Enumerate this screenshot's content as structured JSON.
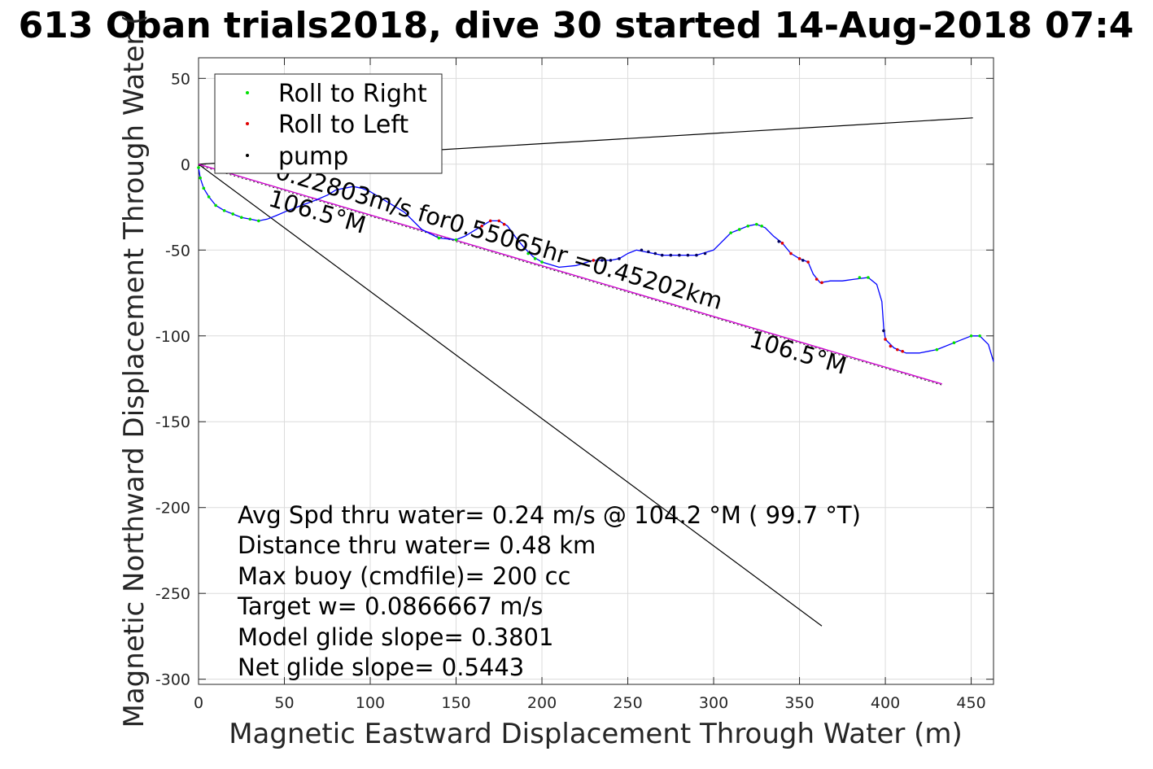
{
  "chart_data": {
    "type": "line",
    "title": "613 Oban trials2018, dive 30 started 14-Aug-2018 07:4",
    "xlabel": "Magnetic Eastward Displacement Through Water (m)",
    "ylabel": "Magnetic Northward Displacement Through Water (",
    "xlim": [
      0,
      463
    ],
    "ylim": [
      -303,
      62
    ],
    "xticks": [
      0,
      50,
      100,
      150,
      200,
      250,
      300,
      350,
      400,
      450
    ],
    "yticks": [
      50,
      0,
      -50,
      -100,
      -150,
      -200,
      -250,
      -300
    ],
    "grid": true,
    "legend_position": "top-left",
    "legend": [
      {
        "name": "Roll to Right",
        "color": "#00e000"
      },
      {
        "name": "Roll to Left",
        "color": "#e00000"
      },
      {
        "name": "pump",
        "color": "#000000"
      }
    ],
    "colors": {
      "track": "#0000ff",
      "heading_line": "#cc00cc",
      "reference": "#000000",
      "pump_marker": "#000060"
    },
    "track": [
      [
        0,
        -2
      ],
      [
        1,
        -8
      ],
      [
        3,
        -14
      ],
      [
        6,
        -19
      ],
      [
        10,
        -24
      ],
      [
        15,
        -27
      ],
      [
        20,
        -29
      ],
      [
        25,
        -31
      ],
      [
        30,
        -32
      ],
      [
        35,
        -33
      ],
      [
        40,
        -32
      ],
      [
        45,
        -30
      ],
      [
        52,
        -27
      ],
      [
        60,
        -24
      ],
      [
        68,
        -21
      ],
      [
        75,
        -18
      ],
      [
        80,
        -15
      ],
      [
        85,
        -14
      ],
      [
        90,
        -13
      ],
      [
        95,
        -14
      ],
      [
        100,
        -16
      ],
      [
        110,
        -22
      ],
      [
        120,
        -28
      ],
      [
        130,
        -38
      ],
      [
        140,
        -43
      ],
      [
        150,
        -44
      ],
      [
        155,
        -42
      ],
      [
        160,
        -39
      ],
      [
        165,
        -36
      ],
      [
        170,
        -33
      ],
      [
        175,
        -33
      ],
      [
        180,
        -36
      ],
      [
        185,
        -43
      ],
      [
        190,
        -49
      ],
      [
        195,
        -54
      ],
      [
        200,
        -57
      ],
      [
        210,
        -60
      ],
      [
        220,
        -59
      ],
      [
        230,
        -56
      ],
      [
        240,
        -56
      ],
      [
        245,
        -55
      ],
      [
        250,
        -52
      ],
      [
        255,
        -50
      ],
      [
        260,
        -51
      ],
      [
        265,
        -52
      ],
      [
        270,
        -53
      ],
      [
        280,
        -53
      ],
      [
        290,
        -53
      ],
      [
        300,
        -50
      ],
      [
        305,
        -45
      ],
      [
        310,
        -40
      ],
      [
        315,
        -38
      ],
      [
        320,
        -36
      ],
      [
        325,
        -35
      ],
      [
        330,
        -37
      ],
      [
        335,
        -42
      ],
      [
        340,
        -46
      ],
      [
        345,
        -52
      ],
      [
        350,
        -55
      ],
      [
        355,
        -57
      ],
      [
        358,
        -64
      ],
      [
        362,
        -69
      ],
      [
        368,
        -68
      ],
      [
        375,
        -68
      ],
      [
        382,
        -67
      ],
      [
        390,
        -66
      ],
      [
        395,
        -70
      ],
      [
        398,
        -80
      ],
      [
        399,
        -95
      ],
      [
        400,
        -102
      ],
      [
        405,
        -107
      ],
      [
        412,
        -110
      ],
      [
        420,
        -110
      ],
      [
        430,
        -108
      ],
      [
        440,
        -104
      ],
      [
        450,
        -100
      ],
      [
        455,
        -100
      ],
      [
        460,
        -105
      ],
      [
        463,
        -115
      ]
    ],
    "roll_right_points": [
      [
        0,
        -2
      ],
      [
        1,
        -8
      ],
      [
        3,
        -14
      ],
      [
        6,
        -19
      ],
      [
        10,
        -24
      ],
      [
        15,
        -27
      ],
      [
        20,
        -29
      ],
      [
        25,
        -31
      ],
      [
        30,
        -32
      ],
      [
        35,
        -33
      ],
      [
        140,
        -43
      ],
      [
        150,
        -44
      ],
      [
        192,
        -52
      ],
      [
        196,
        -55
      ],
      [
        200,
        -57
      ],
      [
        310,
        -40
      ],
      [
        315,
        -38
      ],
      [
        320,
        -36
      ],
      [
        325,
        -35
      ],
      [
        328,
        -36
      ],
      [
        385,
        -66
      ],
      [
        390,
        -66
      ],
      [
        430,
        -108
      ],
      [
        440,
        -104
      ],
      [
        450,
        -100
      ],
      [
        455,
        -100
      ]
    ],
    "roll_left_points": [
      [
        165,
        -36
      ],
      [
        170,
        -33
      ],
      [
        175,
        -33
      ],
      [
        178,
        -35
      ],
      [
        340,
        -46
      ],
      [
        345,
        -52
      ],
      [
        350,
        -55
      ],
      [
        355,
        -57
      ],
      [
        360,
        -67
      ],
      [
        363,
        -69
      ],
      [
        400,
        -102
      ],
      [
        403,
        -106
      ],
      [
        407,
        -108
      ],
      [
        410,
        -109
      ],
      [
        230,
        -56
      ]
    ],
    "pump_points": [
      [
        235,
        -56
      ],
      [
        240,
        -56
      ],
      [
        245,
        -55
      ],
      [
        258,
        -50
      ],
      [
        262,
        -51
      ],
      [
        266,
        -52
      ],
      [
        270,
        -53
      ],
      [
        275,
        -53
      ],
      [
        280,
        -53
      ],
      [
        285,
        -53
      ],
      [
        290,
        -53
      ],
      [
        295,
        -52
      ],
      [
        338,
        -45
      ],
      [
        352,
        -56
      ],
      [
        399,
        -97
      ]
    ],
    "heading_line": {
      "from": [
        0,
        0
      ],
      "to": [
        433,
        -128
      ]
    },
    "reference_lines": [
      {
        "from": [
          0,
          0
        ],
        "to": [
          451,
          27
        ]
      },
      {
        "from": [
          0,
          0
        ],
        "to": [
          363,
          -269
        ]
      }
    ],
    "annotations": [
      {
        "text": "0.22803m/s for0.55065hr =0.45202km",
        "x": 44,
        "y": -8
      },
      {
        "text": "106.5°M",
        "x": 40,
        "y": -24
      },
      {
        "text": "106.5°M",
        "x": 320,
        "y": -106
      }
    ],
    "stats": [
      "Avg Spd thru water=  0.24 m/s @ 104.2 °M ( 99.7 °T)",
      "Distance thru water=  0.48 km",
      "Max buoy (cmdfile)= 200 cc",
      "Target w= 0.0866667 m/s",
      "Model glide slope= 0.3801",
      "Net glide slope= 0.5443"
    ]
  }
}
